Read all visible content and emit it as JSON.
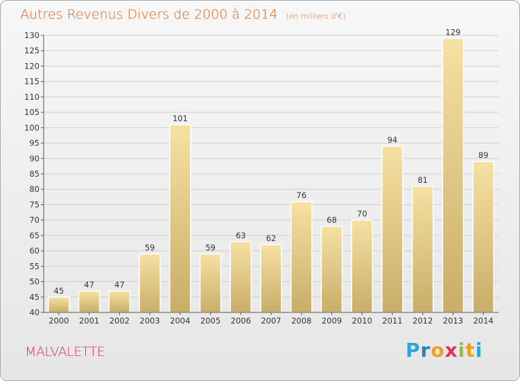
{
  "title": {
    "main": "Autres Revenus Divers de 2000 à 2014",
    "sub": "(en milliers d'€)"
  },
  "commune": "MALVALETTE",
  "logo": {
    "letters": [
      "P",
      "r",
      "o",
      "x",
      "i",
      "t",
      "i"
    ],
    "colors": [
      "#2aa6d8",
      "#2a7fc0",
      "#f0a020",
      "#e03060",
      "#8cc63f",
      "#f0a020",
      "#2aa6d8"
    ]
  },
  "colors": {
    "bar_top": "#f6e1a3",
    "bar_bottom": "#c9ad68",
    "title": "#e0651e",
    "commune": "#e03060"
  },
  "chart_data": {
    "type": "bar",
    "categories": [
      "2000",
      "2001",
      "2002",
      "2003",
      "2004",
      "2005",
      "2006",
      "2007",
      "2008",
      "2009",
      "2010",
      "2011",
      "2012",
      "2013",
      "2014"
    ],
    "values": [
      45,
      47,
      47,
      59,
      101,
      59,
      63,
      62,
      76,
      68,
      70,
      94,
      81,
      129,
      89
    ],
    "ylim": [
      40,
      130
    ],
    "yticks": [
      40,
      45,
      50,
      55,
      60,
      65,
      70,
      75,
      80,
      85,
      90,
      95,
      100,
      105,
      110,
      115,
      120,
      125,
      130
    ],
    "xlabel": "",
    "ylabel": ""
  }
}
